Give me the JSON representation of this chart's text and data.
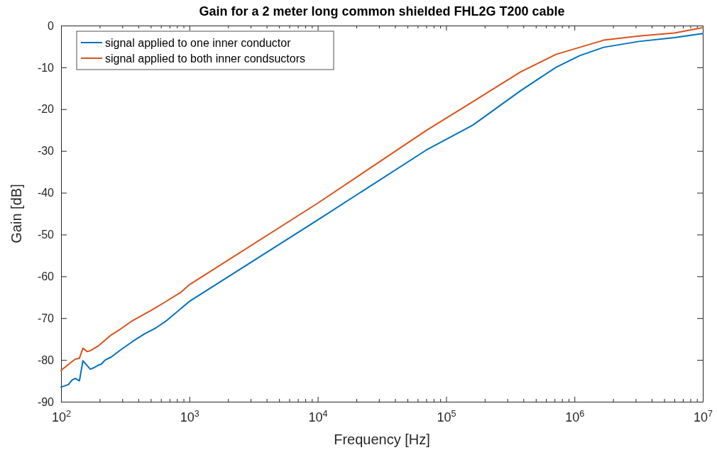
{
  "chart_data": {
    "type": "line",
    "title": "Gain for a 2 meter long common shielded FHL2G T200 cable",
    "xlabel": "Frequency [Hz]",
    "ylabel": "Gain [dB]",
    "log": "x",
    "xlim": [
      100,
      10000000
    ],
    "ylim": [
      -90,
      0
    ],
    "xticks": [
      {
        "value": 100,
        "label": "10$^{2}$"
      },
      {
        "value": 200,
        "label": null
      },
      {
        "value": 300,
        "label": null
      },
      {
        "value": 400,
        "label": null
      },
      {
        "value": 500,
        "label": null
      },
      {
        "value": 600,
        "label": null
      },
      {
        "value": 700,
        "label": null
      },
      {
        "value": 800,
        "label": null
      },
      {
        "value": 900,
        "label": null
      },
      {
        "value": 1000,
        "label": "10$^{3}$"
      },
      {
        "value": 2000,
        "label": null
      },
      {
        "value": 3000,
        "label": null
      },
      {
        "value": 4000,
        "label": null
      },
      {
        "value": 5000,
        "label": null
      },
      {
        "value": 6000,
        "label": null
      },
      {
        "value": 7000,
        "label": null
      },
      {
        "value": 8000,
        "label": null
      },
      {
        "value": 9000,
        "label": null
      },
      {
        "value": 10000,
        "label": "10$^{4}$"
      },
      {
        "value": 20000,
        "label": null
      },
      {
        "value": 30000,
        "label": null
      },
      {
        "value": 40000,
        "label": null
      },
      {
        "value": 50000,
        "label": null
      },
      {
        "value": 60000,
        "label": null
      },
      {
        "value": 70000,
        "label": null
      },
      {
        "value": 80000,
        "label": null
      },
      {
        "value": 90000,
        "label": null
      },
      {
        "value": 100000,
        "label": "10$^{5}$"
      },
      {
        "value": 200000,
        "label": null
      },
      {
        "value": 300000,
        "label": null
      },
      {
        "value": 400000,
        "label": null
      },
      {
        "value": 500000,
        "label": null
      },
      {
        "value": 600000,
        "label": null
      },
      {
        "value": 700000,
        "label": null
      },
      {
        "value": 800000,
        "label": null
      },
      {
        "value": 900000,
        "label": null
      },
      {
        "value": 1000000,
        "label": "10$^{6}$"
      },
      {
        "value": 2000000,
        "label": null
      },
      {
        "value": 3000000,
        "label": null
      },
      {
        "value": 4000000,
        "label": null
      },
      {
        "value": 5000000,
        "label": null
      },
      {
        "value": 6000000,
        "label": null
      },
      {
        "value": 7000000,
        "label": null
      },
      {
        "value": 8000000,
        "label": null
      },
      {
        "value": 9000000,
        "label": null
      },
      {
        "value": 10000000,
        "label": "10$^{7}$"
      }
    ],
    "yticks": [
      -90,
      -80,
      -70,
      -60,
      -50,
      -40,
      -30,
      -20,
      -10,
      0
    ],
    "grid": false,
    "legend": "top left",
    "line_style": "solid",
    "marker": "none",
    "series": [
      {
        "name": "signal applied to one inner conductor",
        "color": "#0072bd",
        "x": [
          100,
          114,
          122,
          129,
          139,
          148,
          169,
          179,
          194,
          206,
          221,
          246,
          291,
          360,
          445,
          550,
          651,
          1000,
          10000,
          70000,
          162000,
          380000,
          718000,
          1100000,
          1690000,
          3180000,
          6000000,
          10000000
        ],
        "values": [
          -86.5,
          -85.9,
          -84.8,
          -84.4,
          -85.0,
          -80.2,
          -82.2,
          -81.9,
          -81.3,
          -81.0,
          -80.0,
          -79.3,
          -77.6,
          -75.6,
          -73.8,
          -72.3,
          -70.8,
          -66.0,
          -46.5,
          -29.8,
          -23.8,
          -15.6,
          -10.0,
          -7.2,
          -5.2,
          -3.8,
          -2.9,
          -1.9
        ]
      },
      {
        "name": "signal applied to both inner condsuctors",
        "color": "#d95319",
        "x": [
          100,
          115,
          129,
          139,
          148,
          160,
          169,
          194,
          246,
          291,
          360,
          505,
          651,
          860,
          1000,
          10000,
          70000,
          162000,
          380000,
          718000,
          1100000,
          1690000,
          3180000,
          6000000,
          10000000
        ],
        "values": [
          -82.5,
          -81.0,
          -79.8,
          -79.6,
          -77.2,
          -78.0,
          -77.8,
          -76.7,
          -74.0,
          -72.6,
          -70.6,
          -68.1,
          -66.1,
          -63.8,
          -62.0,
          -42.5,
          -25.1,
          -18.2,
          -11.1,
          -6.9,
          -5.2,
          -3.5,
          -2.5,
          -1.8,
          -0.5
        ]
      }
    ]
  }
}
